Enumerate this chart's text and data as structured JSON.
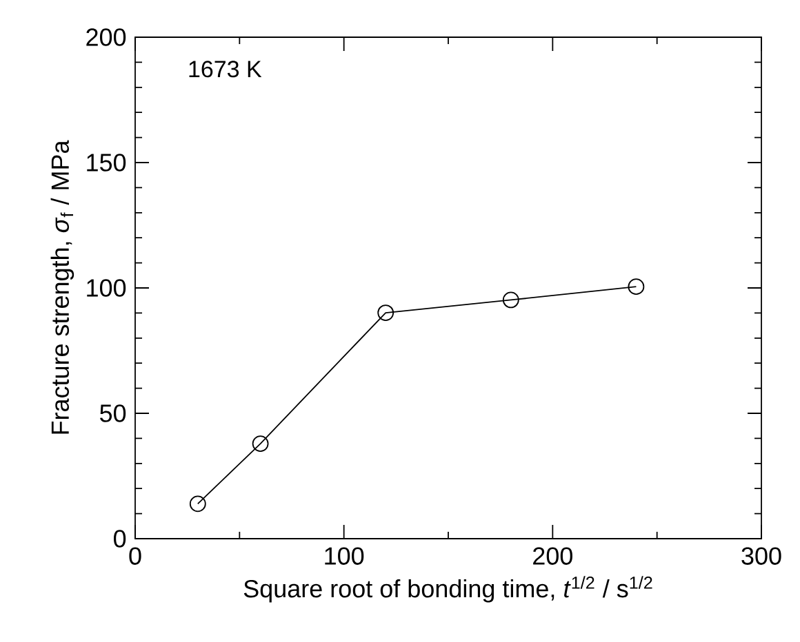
{
  "chart_data": {
    "type": "line",
    "xlabel": "Square root of bonding time, *t*$^{1/2}$ / s$^{1/2}$",
    "ylabel": "Fracture strength, *σ*$_{f}$ / MPa",
    "annotations": [
      "1673 K"
    ],
    "x": [
      30,
      60,
      120,
      180,
      240
    ],
    "series": [
      {
        "color": "#000000",
        "values": [
          13.9,
          37.9,
          90.1,
          95.2,
          100.5
        ]
      }
    ],
    "marker": "circle",
    "line_style": "solid",
    "xlim": [
      0,
      300
    ],
    "ylim": [
      0,
      200
    ],
    "xticks": [
      0,
      100,
      200,
      300
    ],
    "yticks": [
      0,
      50,
      100,
      150,
      200
    ],
    "grid": false
  }
}
